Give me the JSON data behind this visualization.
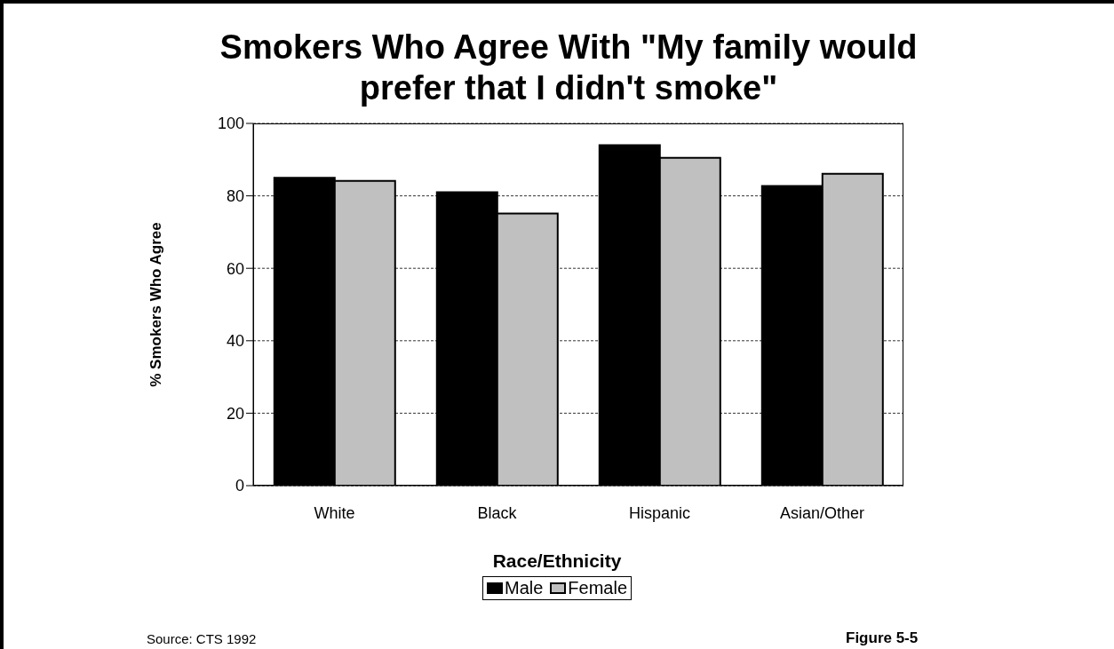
{
  "chart_data": {
    "type": "bar",
    "title": "Smokers Who Agree With \"My family would prefer that I didn't smoke\"",
    "xlabel": "Race/Ethnicity",
    "ylabel": "% Smokers Who Agree",
    "categories": [
      "White",
      "Black",
      "Hispanic",
      "Asian/Other"
    ],
    "series": [
      {
        "name": "Male",
        "color": "#000000",
        "values": [
          85.0,
          81.0,
          94.0,
          82.7
        ]
      },
      {
        "name": "Female",
        "color": "#c0c0c0",
        "values": [
          84.1,
          75.1,
          90.5,
          86.1
        ]
      }
    ],
    "ylim": [
      0,
      100
    ],
    "yticks": [
      0,
      20,
      40,
      60,
      80,
      100
    ],
    "grid": "y",
    "legend": "bottom",
    "annotations": [
      "Source: CTS 1992",
      "Figure 5-5"
    ]
  }
}
